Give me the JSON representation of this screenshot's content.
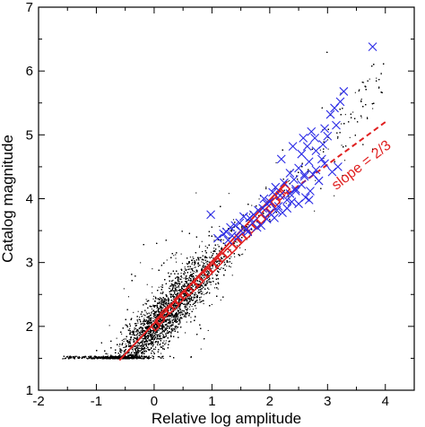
{
  "chart_data": {
    "type": "scatter",
    "xlabel": "Relative log amplitude",
    "ylabel": "Catalog magnitude",
    "xlim": [
      -2,
      4.5
    ],
    "ylim": [
      1,
      7
    ],
    "x_ticks": [
      "-2",
      "-1",
      "0",
      "1",
      "2",
      "3",
      "4"
    ],
    "y_ticks": [
      "1",
      "2",
      "3",
      "4",
      "5",
      "6",
      "7"
    ],
    "grid": false,
    "legend": "none",
    "annotation": "slope = 2/3",
    "colors": {
      "background_points": "#000000",
      "catalog_events": "#2a2ae6",
      "binned_means": "#e02020",
      "fit_line": "#e02020"
    },
    "series": [
      {
        "marker": "diamond",
        "color": "#e02020",
        "x": [
          0.02,
          0.1,
          0.18,
          0.27,
          0.35,
          0.43,
          0.52,
          0.6,
          0.68,
          0.77,
          0.85,
          0.93,
          1.02,
          1.1,
          1.18,
          1.27,
          1.35,
          1.43,
          1.52,
          1.6,
          1.68,
          1.77,
          1.85,
          1.93,
          2.02,
          2.1,
          2.18,
          2.27
        ],
        "y": [
          2.0,
          2.1,
          2.2,
          2.27,
          2.33,
          2.42,
          2.5,
          2.55,
          2.62,
          2.7,
          2.78,
          2.84,
          2.92,
          3.0,
          3.08,
          3.15,
          3.22,
          3.3,
          3.38,
          3.44,
          3.53,
          3.6,
          3.68,
          3.77,
          3.85,
          3.95,
          4.05,
          4.15
        ]
      },
      {
        "marker": "x",
        "color": "#2a2ae6",
        "x": [
          3.78,
          3.28,
          3.22,
          3.12,
          3.05,
          3.15,
          2.95,
          3.0,
          2.92,
          2.78,
          2.72,
          2.8,
          2.9,
          2.95,
          3.08,
          3.18,
          2.68,
          2.55,
          2.6,
          2.5,
          2.42,
          2.35,
          2.45,
          2.25,
          2.1,
          2.18,
          2.3,
          2.05,
          2.0,
          1.95,
          1.88,
          1.8,
          1.72,
          1.65,
          1.55,
          1.48,
          1.4,
          1.32,
          1.25,
          1.2,
          1.1,
          0.98,
          2.7,
          2.85,
          2.65,
          2.58,
          2.2,
          2.4,
          2.6,
          1.9,
          2.0,
          2.15,
          2.8,
          2.55,
          1.7,
          1.6,
          1.5,
          1.45,
          1.35,
          1.28,
          2.35,
          2.5,
          2.62,
          2.75,
          2.45,
          2.3,
          2.22,
          2.08,
          1.95,
          1.85,
          1.78,
          1.62,
          2.68,
          2.38,
          2.12
        ],
        "y": [
          6.38,
          5.68,
          5.52,
          5.42,
          5.32,
          5.15,
          5.1,
          4.98,
          4.85,
          4.95,
          5.05,
          4.75,
          4.62,
          4.55,
          4.42,
          4.5,
          4.58,
          4.7,
          4.35,
          4.48,
          4.3,
          4.4,
          4.15,
          4.25,
          4.18,
          4.05,
          3.98,
          4.1,
          3.95,
          3.92,
          3.85,
          3.82,
          3.75,
          3.7,
          3.72,
          3.62,
          3.58,
          3.55,
          3.48,
          3.45,
          3.38,
          3.75,
          4.12,
          4.28,
          4.82,
          4.95,
          4.62,
          4.82,
          4.38,
          4.0,
          3.78,
          3.88,
          4.45,
          4.22,
          3.62,
          3.52,
          3.5,
          3.4,
          3.42,
          3.35,
          4.08,
          3.92,
          4.02,
          4.38,
          4.12,
          3.85,
          3.78,
          3.7,
          3.68,
          3.58,
          3.55,
          3.48,
          3.98,
          3.95,
          3.82
        ]
      }
    ],
    "lines": [
      {
        "style": "solid",
        "color": "#e02020",
        "x": [
          -0.6,
          2.3
        ],
        "y": [
          1.47,
          4.27
        ]
      },
      {
        "style": "dashed",
        "color": "#e02020",
        "x": [
          2.3,
          4.0
        ],
        "y": [
          4.07,
          5.2
        ]
      }
    ],
    "density_cloud": {
      "color": "#000000",
      "count": 14000,
      "x_range": [
        -1.6,
        4.0
      ],
      "y_floor": 1.5,
      "trend_slope": 0.97,
      "trend_intercept": 2.0
    }
  }
}
